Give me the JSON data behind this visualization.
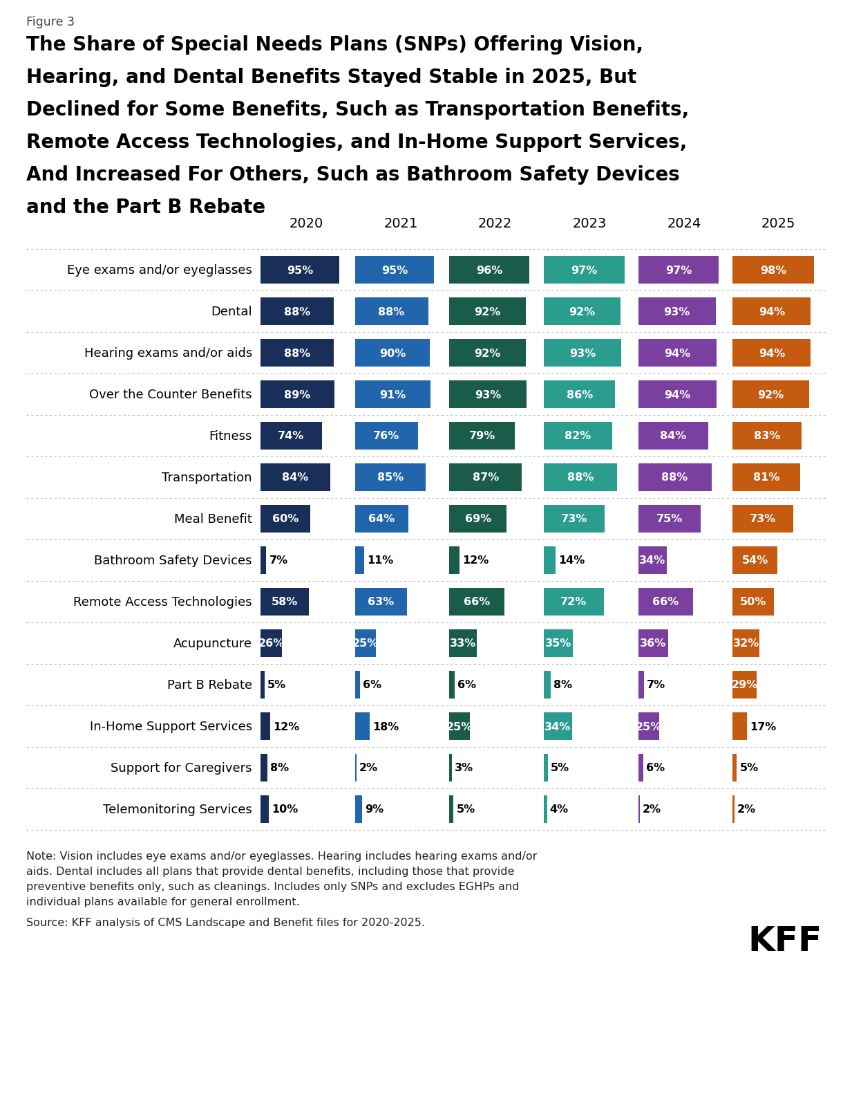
{
  "figure_label": "Figure 3",
  "title_lines": [
    "The Share of Special Needs Plans (SNPs) Offering Vision,",
    "Hearing, and Dental Benefits Stayed Stable in 2025, But",
    "Declined for Some Benefits, Such as Transportation Benefits,",
    "Remote Access Technologies, and In-Home Support Services,",
    "And Increased For Others, Such as Bathroom Safety Devices",
    "and the Part B Rebate"
  ],
  "years": [
    "2020",
    "2021",
    "2022",
    "2023",
    "2024",
    "2025"
  ],
  "year_colors": [
    "#1a2e5a",
    "#2166ac",
    "#1a5c4a",
    "#2a9d8f",
    "#7b3fa0",
    "#c55a11"
  ],
  "categories": [
    "Eye exams and/or eyeglasses",
    "Dental",
    "Hearing exams and/or aids",
    "Over the Counter Benefits",
    "Fitness",
    "Transportation",
    "Meal Benefit",
    "Bathroom Safety Devices",
    "Remote Access Technologies",
    "Acupuncture",
    "Part B Rebate",
    "In-Home Support Services",
    "Support for Caregivers",
    "Telemonitoring Services"
  ],
  "values": [
    [
      95,
      95,
      96,
      97,
      97,
      98
    ],
    [
      88,
      88,
      92,
      92,
      93,
      94
    ],
    [
      88,
      90,
      92,
      93,
      94,
      94
    ],
    [
      89,
      91,
      93,
      86,
      94,
      92
    ],
    [
      74,
      76,
      79,
      82,
      84,
      83
    ],
    [
      84,
      85,
      87,
      88,
      88,
      81
    ],
    [
      60,
      64,
      69,
      73,
      75,
      73
    ],
    [
      7,
      11,
      12,
      14,
      34,
      54
    ],
    [
      58,
      63,
      66,
      72,
      66,
      50
    ],
    [
      26,
      25,
      33,
      35,
      36,
      32
    ],
    [
      5,
      6,
      6,
      8,
      7,
      29
    ],
    [
      12,
      18,
      25,
      34,
      25,
      17
    ],
    [
      8,
      2,
      3,
      5,
      6,
      5
    ],
    [
      10,
      9,
      5,
      4,
      2,
      2
    ]
  ],
  "note_lines": [
    "Note: Vision includes eye exams and/or eyeglasses. Hearing includes hearing exams and/or",
    "aids. Dental includes all plans that provide dental benefits, including those that provide",
    "preventive benefits only, such as cleanings. Includes only SNPs and excludes EGHPs and",
    "individual plans available for general enrollment."
  ],
  "source": "Source: KFF analysis of CMS Landscape and Benefit files for 2020-2025.",
  "background_color": "#ffffff"
}
